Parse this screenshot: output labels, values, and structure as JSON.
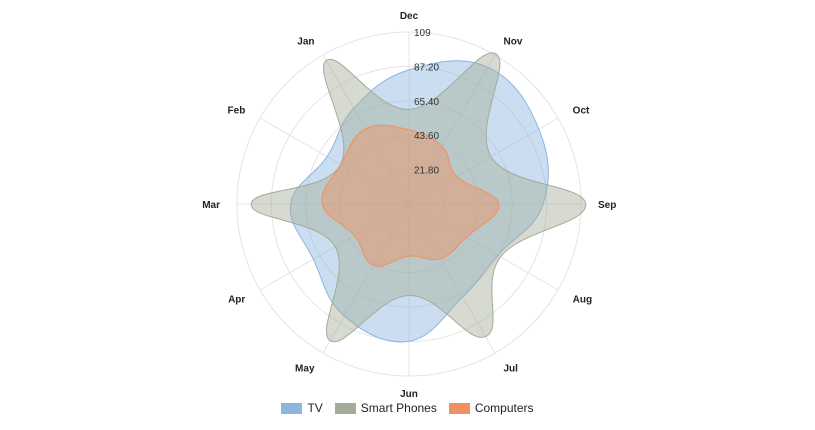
{
  "chart_data": {
    "type": "radar",
    "categories": [
      "Dec",
      "Nov",
      "Oct",
      "Sep",
      "Aug",
      "Jul",
      "Jun",
      "May",
      "Apr",
      "Mar",
      "Feb",
      "Jan"
    ],
    "rlim": [
      0,
      109
    ],
    "ticks": [
      "109",
      "87.20",
      "65.40",
      "43.60",
      "21.80"
    ],
    "tick_values": [
      109,
      87.2,
      65.4,
      43.6,
      21.8
    ],
    "grid": true,
    "legend_position": "bottom",
    "series": [
      {
        "name": "TV",
        "color": "#8cb5e1",
        "values": [
          85,
          100,
          95,
          85,
          65,
          68,
          87,
          82,
          70,
          75,
          60,
          70
        ]
      },
      {
        "name": "Smart Phones",
        "color": "#a3ac98",
        "values": [
          60,
          110,
          60,
          112,
          67,
          97,
          58,
          100,
          54,
          100,
          50,
          105
        ]
      },
      {
        "name": "Computers",
        "color": "#f09060",
        "values": [
          47,
          42,
          35,
          57,
          42,
          40,
          33,
          45,
          40,
          55,
          50,
          55
        ]
      }
    ]
  }
}
